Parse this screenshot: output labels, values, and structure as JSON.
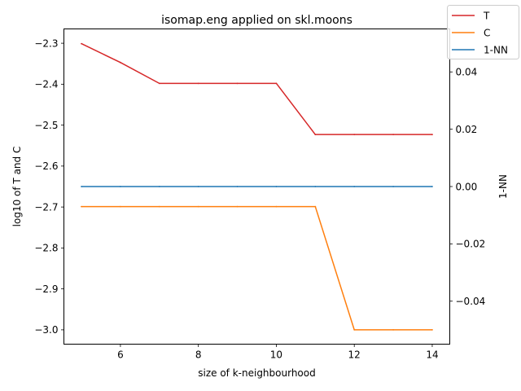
{
  "chart_data": {
    "type": "line",
    "title": "isomap.eng applied on skl.moons",
    "xlabel": "size of k-neighbourhood",
    "ylabel": "log10 of T and C",
    "y2label": "1-NN",
    "xlim": [
      4.55,
      14.45
    ],
    "ylim": [
      -3.035,
      -2.265
    ],
    "y2lim": [
      -0.055,
      0.055
    ],
    "xticks": [
      "6",
      "8",
      "10",
      "12",
      "14"
    ],
    "xtick_values": [
      6,
      8,
      10,
      12,
      14
    ],
    "yticks": [
      "−2.3",
      "−2.4",
      "−2.5",
      "−2.6",
      "−2.7",
      "−2.8",
      "−2.9",
      "−3.0"
    ],
    "ytick_values": [
      -2.3,
      -2.4,
      -2.5,
      -2.6,
      -2.7,
      -2.8,
      -2.9,
      -3.0
    ],
    "y2ticks": [
      "0.04",
      "0.02",
      "0.00",
      "−0.02",
      "−0.04"
    ],
    "y2tick_values": [
      0.04,
      0.02,
      0.0,
      -0.02,
      -0.04
    ],
    "x": [
      5,
      6,
      7,
      8,
      9,
      10,
      11,
      12,
      13,
      14
    ],
    "series": [
      {
        "name": "T",
        "axis": "left",
        "color": "#d62728",
        "values": [
          -2.301,
          -2.347,
          -2.398,
          -2.398,
          -2.398,
          -2.398,
          -2.523,
          -2.523,
          -2.523,
          -2.523
        ]
      },
      {
        "name": "C",
        "axis": "left",
        "color": "#ff7f0e",
        "values": [
          -2.699,
          -2.699,
          -2.699,
          -2.699,
          -2.699,
          -2.699,
          -2.699,
          -3.0,
          -3.0,
          -3.0
        ]
      },
      {
        "name": "1-NN",
        "axis": "right",
        "color": "#1f77b4",
        "values": [
          0,
          0,
          0,
          0,
          0,
          0,
          0,
          0,
          0,
          0
        ]
      }
    ],
    "legend_position": "top-right",
    "grid": false
  }
}
